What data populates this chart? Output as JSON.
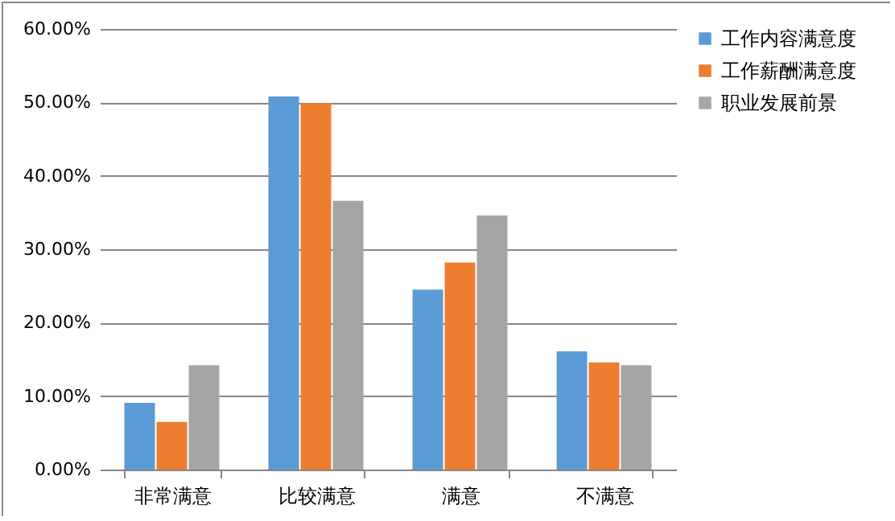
{
  "chart_data": {
    "type": "bar",
    "categories": [
      "非常满意",
      "比较满意",
      "满意",
      "不满意"
    ],
    "series": [
      {
        "name": "工作内容满意度",
        "color": "#5b9bd5",
        "values": [
          9.1,
          50.8,
          24.5,
          16.1
        ]
      },
      {
        "name": "工作薪酬满意度",
        "color": "#ed7d31",
        "values": [
          6.5,
          49.9,
          28.2,
          14.6
        ]
      },
      {
        "name": "职业发展前景",
        "color": "#a5a5a5",
        "values": [
          14.2,
          36.6,
          34.6,
          14.2
        ]
      }
    ],
    "ylim": [
      0,
      60
    ],
    "yticks": [
      {
        "value": 0,
        "label": "0.00%"
      },
      {
        "value": 10,
        "label": "10.00%"
      },
      {
        "value": 20,
        "label": "20.00%"
      },
      {
        "value": 30,
        "label": "30.00%"
      },
      {
        "value": 40,
        "label": "40.00%"
      },
      {
        "value": 50,
        "label": "50.00%"
      },
      {
        "value": 60,
        "label": "60.00%"
      }
    ],
    "grid": "y",
    "legend": "right"
  }
}
